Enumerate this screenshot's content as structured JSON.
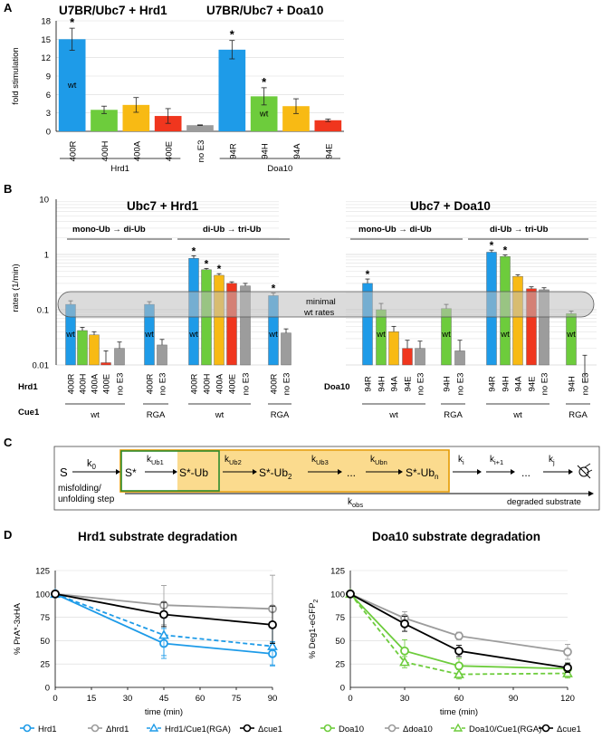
{
  "colors": {
    "blue": "#1E9BE8",
    "green": "#6DCC3C",
    "yellow": "#F8BA14",
    "red": "#F0361E",
    "gray": "#9C9C9C",
    "black": "#000000",
    "band": "#BDBDBD",
    "dgreen": "#2E8B2E",
    "orange": "#E59A00",
    "fill": "#FBDB8E"
  },
  "panelA": {
    "label": "A",
    "title_left": "U7BR/Ubc7 + Hrd1",
    "title_right": "U7BR/Ubc7 + Doa10",
    "chart_data": {
      "type": "bar",
      "ylabel": "fold stimulation",
      "ylim": [
        0,
        18
      ],
      "yticks": [
        "0",
        "3",
        "6",
        "9",
        "12",
        "15",
        "18"
      ],
      "categories": [
        "400R",
        "400H",
        "400A",
        "400E",
        "no E3",
        "94R",
        "94H",
        "94A",
        "94E"
      ],
      "values": [
        15.0,
        3.5,
        4.3,
        2.5,
        1.0,
        13.3,
        5.7,
        4.1,
        1.8
      ],
      "errors": [
        1.8,
        0.6,
        1.2,
        1.2,
        0.05,
        1.5,
        1.4,
        1.2,
        0.2
      ],
      "colors": [
        "blue",
        "green",
        "yellow",
        "red",
        "gray",
        "blue",
        "green",
        "yellow",
        "red"
      ],
      "star": [
        true,
        false,
        false,
        false,
        false,
        true,
        true,
        false,
        false
      ],
      "wt_label": [
        true,
        false,
        false,
        false,
        false,
        false,
        true,
        false,
        false
      ],
      "wt_text": "wt",
      "groups": [
        "Hrd1",
        "Doa10"
      ]
    }
  },
  "panelB": {
    "label": "B",
    "ylabel": "rates (1/min)",
    "yticks": [
      "10",
      "1",
      "0.1",
      "0.01"
    ],
    "band_text1": "minimal",
    "band_text2": "wt rates",
    "left": {
      "title": "Ubc7 + Hrd1",
      "sub1": "mono-Ub → di-Ub",
      "sub2": "di-Ub → tri-Ub",
      "row1_label": "Hrd1",
      "row2_label": "Cue1",
      "chart_data": {
        "type": "bar",
        "scale": "log",
        "ylim": [
          0.01,
          10
        ],
        "categories": [
          "400R",
          "400H",
          "400A",
          "400E",
          "no E3",
          "400R",
          "no E3",
          "400R",
          "400H",
          "400A",
          "400E",
          "no E3",
          "400R",
          "no E3"
        ],
        "values": [
          0.125,
          0.042,
          0.035,
          0.011,
          0.02,
          0.125,
          0.023,
          0.85,
          0.53,
          0.42,
          0.3,
          0.27,
          0.18,
          0.038
        ],
        "err_hi": [
          0.145,
          0.048,
          0.04,
          0.018,
          0.026,
          0.14,
          0.029,
          0.95,
          0.56,
          0.45,
          0.32,
          0.3,
          0.2,
          0.045
        ],
        "colors": [
          "blue",
          "green",
          "yellow",
          "red",
          "gray",
          "blue",
          "gray",
          "blue",
          "green",
          "yellow",
          "red",
          "gray",
          "blue",
          "gray"
        ],
        "star": [
          false,
          false,
          false,
          false,
          false,
          false,
          false,
          true,
          true,
          true,
          false,
          false,
          true,
          false
        ],
        "wt_label": [
          true,
          false,
          false,
          false,
          false,
          true,
          false,
          true,
          false,
          false,
          false,
          false,
          true,
          false
        ],
        "cue1": [
          "wt",
          "RGA",
          "wt",
          "RGA"
        ]
      }
    },
    "right": {
      "title": "Ubc7 + Doa10",
      "sub1": "mono-Ub → di-Ub",
      "sub2": "di-Ub → tri-Ub",
      "row1_label": "Doa10",
      "chart_data": {
        "type": "bar",
        "scale": "log",
        "ylim": [
          0.01,
          10
        ],
        "categories": [
          "94R",
          "94H",
          "94A",
          "94E",
          "no E3",
          "94H",
          "no E3",
          "94R",
          "94H",
          "94A",
          "94E",
          "no E3",
          "94H",
          "no E3"
        ],
        "values": [
          0.3,
          0.1,
          0.04,
          0.02,
          0.02,
          0.105,
          0.018,
          1.1,
          0.92,
          0.4,
          0.24,
          0.23,
          0.085,
          0.005
        ],
        "err_hi": [
          0.36,
          0.13,
          0.05,
          0.028,
          0.027,
          0.125,
          0.028,
          1.2,
          0.98,
          0.43,
          0.26,
          0.25,
          0.095,
          0.015
        ],
        "colors": [
          "blue",
          "green",
          "yellow",
          "red",
          "gray",
          "green",
          "gray",
          "blue",
          "green",
          "yellow",
          "red",
          "gray",
          "green",
          "gray"
        ],
        "star": [
          true,
          false,
          false,
          false,
          false,
          false,
          false,
          true,
          true,
          false,
          false,
          false,
          false,
          false
        ],
        "wt_label": [
          false,
          true,
          false,
          false,
          false,
          true,
          false,
          false,
          true,
          false,
          false,
          false,
          true,
          false
        ],
        "cue1": [
          "wt",
          "RGA",
          "wt",
          "RGA"
        ]
      }
    }
  },
  "panelC": {
    "label": "C",
    "S": "S",
    "k0": "k",
    "k0sub": "0",
    "misfold1": "misfolding/",
    "misfold2": "unfolding step",
    "Sstar": "S*",
    "kUb1": "k",
    "kUb1sub": "Ub1",
    "SUb": "S*-Ub",
    "kUb2": "k",
    "kUb2sub": "Ub2",
    "SUb2": "S*-Ub",
    "SUb2sub": "2",
    "kUb3": "k",
    "kUb3sub": "Ub3",
    "dots": "...",
    "kUbn": "k",
    "kUbnsub": "Ubn",
    "SUbn": "S*-Ub",
    "SUbnsub": "n",
    "ki": "k",
    "kisub": "i",
    "ki1": "k",
    "ki1sub": "i+1",
    "kj": "k",
    "kjsub": "j",
    "kobs": "k",
    "kobssub": "obs",
    "degraded": "degraded substrate"
  },
  "panelD": {
    "label": "D",
    "left": {
      "title": "Hrd1 substrate degradation",
      "ylabel": "% PrA*-3xHA",
      "xlabel": "time (min)",
      "chart_data": {
        "type": "line",
        "xlim": [
          0,
          90
        ],
        "ylim": [
          0,
          125
        ],
        "xticks": [
          "0",
          "15",
          "30",
          "45",
          "60",
          "75",
          "90"
        ],
        "yticks": [
          "0",
          "25",
          "50",
          "75",
          "100",
          "125"
        ],
        "x": [
          0,
          45,
          90
        ],
        "series": [
          {
            "name": "Hrd1",
            "values": [
              100,
              47,
              36
            ],
            "err": [
              0,
              16,
              13
            ],
            "color": "blue",
            "marker": "circle",
            "dash": false
          },
          {
            "name": "Δhrd1",
            "values": [
              100,
              88,
              84
            ],
            "err": [
              0,
              21,
              36
            ],
            "color": "gray",
            "marker": "circle",
            "dash": false
          },
          {
            "name": "Hrd1/Cue1(RGA)",
            "values": [
              100,
              56,
              44
            ],
            "err": [
              0,
              22,
              20
            ],
            "color": "blue",
            "marker": "triangle",
            "dash": true
          },
          {
            "name": "Δcue1",
            "values": [
              100,
              78,
              67
            ],
            "err": [
              0,
              13,
              20
            ],
            "color": "black",
            "marker": "circle",
            "dash": false
          }
        ]
      },
      "legend": [
        "Hrd1",
        "Δhrd1",
        "Hrd1/Cue1(RGA)",
        "Δcue1"
      ]
    },
    "right": {
      "title": "Doa10 substrate degradation",
      "ylabel": "% Deg1-eGFP",
      "ylabel_sub": "2",
      "xlabel": "time (min)",
      "chart_data": {
        "type": "line",
        "xlim": [
          0,
          120
        ],
        "ylim": [
          0,
          125
        ],
        "xticks": [
          "0",
          "30",
          "60",
          "90",
          "120"
        ],
        "yticks": [
          "0",
          "25",
          "50",
          "75",
          "100",
          "125"
        ],
        "x": [
          0,
          30,
          60,
          120
        ],
        "series": [
          {
            "name": "Doa10",
            "values": [
              100,
              39,
              23,
              20
            ],
            "err": [
              0,
              12,
              8,
              6
            ],
            "color": "green",
            "marker": "circle",
            "dash": false
          },
          {
            "name": "Δdoa10",
            "values": [
              100,
              74,
              55,
              38
            ],
            "err": [
              0,
              7,
              4,
              8
            ],
            "color": "gray",
            "marker": "circle",
            "dash": false
          },
          {
            "name": "Doa10/Cue1(RGA)",
            "values": [
              100,
              27,
              14,
              15
            ],
            "err": [
              0,
              6,
              5,
              5
            ],
            "color": "green",
            "marker": "triangle",
            "dash": true
          },
          {
            "name": "Δcue1",
            "values": [
              100,
              68,
              39,
              21
            ],
            "err": [
              0,
              8,
              6,
              5
            ],
            "color": "black",
            "marker": "circle",
            "dash": false
          }
        ]
      },
      "legend": [
        "Doa10",
        "Δdoa10",
        "Doa10/Cue1(RGA)",
        "Δcue1"
      ]
    }
  }
}
